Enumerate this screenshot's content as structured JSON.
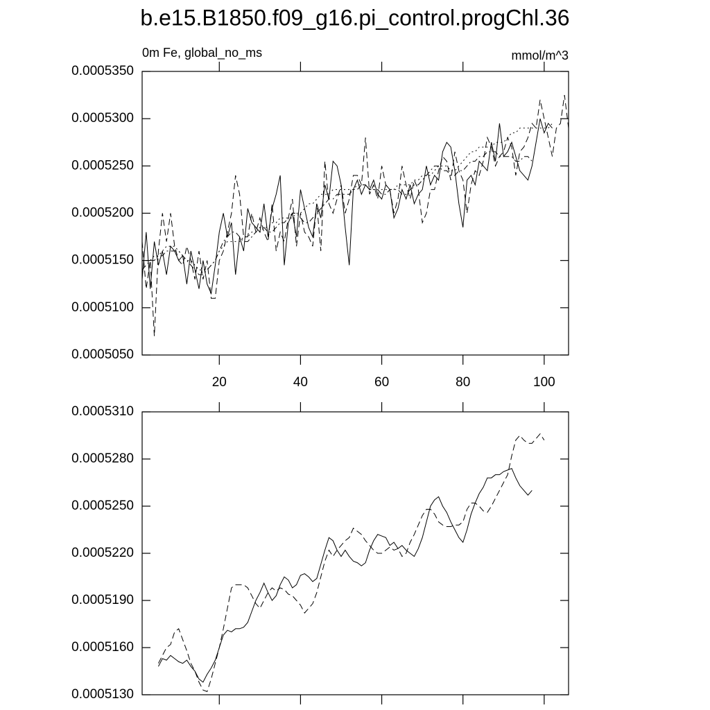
{
  "chart_data": [
    {
      "type": "line",
      "title": "b.e15.B1850.f09_g16.pi_control.progChl.36",
      "subtitle": "0m Fe, global_no_ms",
      "units": "mmol/m^3",
      "x": [
        1,
        2,
        3,
        4,
        5,
        6,
        7,
        8,
        9,
        10,
        11,
        12,
        13,
        14,
        15,
        16,
        17,
        18,
        19,
        20,
        21,
        22,
        23,
        24,
        25,
        26,
        27,
        28,
        29,
        30,
        31,
        32,
        33,
        34,
        35,
        36,
        37,
        38,
        39,
        40,
        41,
        42,
        43,
        44,
        45,
        46,
        47,
        48,
        49,
        50,
        51,
        52,
        53,
        54,
        55,
        56,
        57,
        58,
        59,
        60,
        61,
        62,
        63,
        64,
        65,
        66,
        67,
        68,
        69,
        70,
        71,
        72,
        73,
        74,
        75,
        76,
        77,
        78,
        79,
        80,
        81,
        82,
        83,
        84,
        85,
        86,
        87,
        88,
        89,
        90,
        91,
        92,
        93,
        94,
        95,
        96,
        97,
        98,
        99,
        100,
        101,
        102,
        103,
        104,
        105,
        106
      ],
      "xlim": [
        1,
        106
      ],
      "xticks": [
        20,
        40,
        60,
        80,
        100
      ],
      "ylim": [
        0.000505,
        0.000535
      ],
      "yticks": [
        {
          "value": 0.000505,
          "label": "0.0005050"
        },
        {
          "value": 0.00051,
          "label": "0.0005100"
        },
        {
          "value": 0.000515,
          "label": "0.0005150"
        },
        {
          "value": 0.00052,
          "label": "0.0005200"
        },
        {
          "value": 0.000525,
          "label": "0.0005250"
        },
        {
          "value": 0.00053,
          "label": "0.0005300"
        },
        {
          "value": 0.000535,
          "label": "0.0005350"
        }
      ],
      "series": [
        {
          "color": "#000000",
          "dash": "solid",
          "values": [
            0.000513,
            0.000518,
            0.000512,
            0.000517,
            0.0005145,
            0.000516,
            0.0005135,
            0.0005165,
            0.000516,
            0.000515,
            0.0005155,
            0.0005125,
            0.000516,
            0.000514,
            0.000512,
            0.000515,
            0.0005125,
            0.0005115,
            0.0005145,
            0.000518,
            0.00052,
            0.0005175,
            0.000519,
            0.0005135,
            0.0005175,
            0.000516,
            0.0005205,
            0.000519,
            0.0005185,
            0.000518,
            0.000521,
            0.0005175,
            0.0005205,
            0.000522,
            0.000524,
            0.0005145,
            0.000519,
            0.00052,
            0.0005175,
            0.0005225,
            0.0005205,
            0.0005185,
            0.0005175,
            0.000521,
            0.0005195,
            0.000523,
            0.0005215,
            0.0005255,
            0.000525,
            0.000523,
            0.0005185,
            0.0005145,
            0.0005225,
            0.0005235,
            0.000522,
            0.000523,
            0.0005225,
            0.0005235,
            0.000522,
            0.0005215,
            0.000523,
            0.0005225,
            0.0005195,
            0.0005205,
            0.0005225,
            0.0005215,
            0.000523,
            0.000521,
            0.000522,
            0.0005225,
            0.000525,
            0.000523,
            0.000524,
            0.0005235,
            0.0005265,
            0.0005275,
            0.000527,
            0.0005245,
            0.000521,
            0.0005185,
            0.0005235,
            0.000524,
            0.000523,
            0.0005255,
            0.000525,
            0.0005245,
            0.0005275,
            0.0005255,
            0.0005295,
            0.000526,
            0.0005265,
            0.0005275,
            0.000526,
            0.0005245,
            0.000524,
            0.0005235,
            0.000525,
            0.0005275,
            0.00053,
            0.0005285,
            0.0005295,
            0.000529,
            null,
            null,
            null,
            null
          ]
        },
        {
          "color": "#000000",
          "dash": "dashed",
          "values": [
            0.000517,
            0.000512,
            0.000515,
            0.000507,
            0.000516,
            0.00052,
            0.000517,
            0.00052,
            0.0005165,
            0.000515,
            0.0005145,
            0.0005165,
            0.000515,
            0.000513,
            0.000516,
            0.000513,
            0.000515,
            0.000511,
            0.000511,
            0.000515,
            0.000516,
            0.000518,
            0.00052,
            0.000524,
            0.000522,
            0.0005175,
            0.0005175,
            0.00052,
            0.000518,
            0.0005195,
            0.000518,
            0.000517,
            0.000521,
            0.000516,
            0.000518,
            0.000517,
            0.0005195,
            0.0005215,
            0.0005165,
            0.00052,
            0.000518,
            0.0005175,
            0.0005165,
            0.000521,
            0.000516,
            0.0005255,
            0.000521,
            0.00052,
            0.0005215,
            0.000523,
            0.00052,
            0.0005215,
            0.000524,
            0.000524,
            0.000523,
            0.000528,
            0.000522,
            0.000523,
            0.0005215,
            0.000525,
            0.000523,
            0.0005225,
            0.00052,
            0.0005215,
            0.000525,
            0.000523,
            0.0005215,
            0.0005235,
            0.0005225,
            0.000519,
            0.00052,
            0.0005225,
            0.0005225,
            0.0005245,
            0.000526,
            0.0005255,
            0.0005235,
            0.0005265,
            0.0005245,
            0.0005235,
            0.00052,
            0.000523,
            0.0005245,
            0.000524,
            0.0005255,
            0.000528,
            0.000527,
            0.000525,
            0.000526,
            0.0005265,
            0.000528,
            0.000527,
            0.000524,
            0.0005265,
            0.000527,
            0.000528,
            0.0005295,
            0.000529,
            0.000532,
            0.00053,
            0.000528,
            0.000526,
            0.000529,
            0.0005295,
            0.0005325,
            0.000529
          ]
        },
        {
          "color": "#000000",
          "dash": "dashdot",
          "values": [
            0.000514,
            0.0005145,
            0.000515,
            0.000515,
            0.0005155,
            0.0005155,
            0.000516,
            0.000516,
            0.000516,
            0.000516,
            0.0005155,
            0.000515,
            0.0005145,
            0.000514,
            0.0005135,
            0.0005135,
            0.000514,
            0.0005145,
            0.000515,
            0.000516,
            0.000517,
            0.0005175,
            0.000518,
            0.000518,
            0.0005175,
            0.000517,
            0.000517,
            0.0005175,
            0.000518,
            0.0005185,
            0.0005185,
            0.000518,
            0.000518,
            0.0005185,
            0.000519,
            0.000519,
            0.0005195,
            0.00052,
            0.00052,
            0.0005195,
            0.000519,
            0.000519,
            0.0005195,
            0.00052,
            0.0005205,
            0.000521,
            0.0005215,
            0.0005215,
            0.000522,
            0.000522,
            0.000522,
            0.000522,
            0.0005225,
            0.0005225,
            0.000523,
            0.000523,
            0.0005225,
            0.0005225,
            0.0005225,
            0.000522,
            0.000522,
            0.0005225,
            0.0005225,
            0.0005225,
            0.000522,
            0.000522,
            0.0005225,
            0.000523,
            0.000523,
            0.0005235,
            0.000524,
            0.0005245,
            0.000525,
            0.000525,
            0.0005245,
            0.0005245,
            0.000524,
            0.000524,
            0.0005245,
            0.0005245,
            0.000525,
            0.0005255,
            0.0005255,
            0.000526,
            0.000526,
            0.0005265,
            0.0005265,
            0.0005265,
            0.000526,
            0.000526,
            0.000526,
            0.000526,
            0.0005255,
            0.0005255,
            0.000526,
            0.000526,
            0.0005255,
            null,
            null,
            null,
            null,
            null,
            null,
            null,
            null,
            null
          ]
        },
        {
          "color": "#000000",
          "dash": "dotted",
          "values": [
            0.000515,
            0.000515,
            0.000515,
            0.0005155,
            0.0005155,
            0.000516,
            0.0005165,
            0.0005165,
            0.0005165,
            0.000516,
            0.0005155,
            0.000515,
            0.000515,
            0.0005145,
            0.000514,
            0.000514,
            0.000514,
            0.0005145,
            0.000515,
            0.000516,
            0.0005165,
            0.000517,
            0.000517,
            0.000517,
            0.000517,
            0.0005175,
            0.0005175,
            0.000518,
            0.000518,
            0.000518,
            0.0005185,
            0.0005185,
            0.000519,
            0.000519,
            0.0005195,
            0.0005195,
            0.0005195,
            0.0005195,
            0.00052,
            0.00052,
            0.0005205,
            0.000521,
            0.000521,
            0.0005215,
            0.000522,
            0.000522,
            0.000522,
            0.0005225,
            0.0005225,
            0.0005225,
            0.0005225,
            0.0005225,
            0.0005225,
            0.000523,
            0.000523,
            0.000523,
            0.0005225,
            0.0005225,
            0.0005225,
            0.0005225,
            0.0005225,
            0.0005225,
            0.0005225,
            0.000523,
            0.000523,
            0.000523,
            0.000523,
            0.0005235,
            0.0005235,
            0.000524,
            0.000524,
            0.000524,
            0.0005245,
            0.000525,
            0.000525,
            0.000525,
            0.0005245,
            0.0005245,
            0.000525,
            0.0005255,
            0.000526,
            0.0005265,
            0.0005265,
            0.000527,
            0.000527,
            0.000527,
            0.000527,
            0.0005275,
            0.0005275,
            0.0005275,
            0.000528,
            0.0005285,
            0.0005285,
            0.000529,
            0.000529,
            0.000529,
            0.000529,
            0.000529,
            0.000529,
            0.000529,
            0.000529,
            0.0005295,
            null,
            null,
            null,
            null
          ]
        }
      ]
    },
    {
      "type": "line",
      "x": [
        1,
        2,
        3,
        4,
        5,
        6,
        7,
        8,
        9,
        10,
        11,
        12,
        13,
        14,
        15,
        16,
        17,
        18,
        19,
        20,
        21,
        22,
        23,
        24,
        25,
        26,
        27,
        28,
        29,
        30,
        31,
        32,
        33,
        34,
        35,
        36,
        37,
        38,
        39,
        40,
        41,
        42,
        43,
        44,
        45,
        46,
        47,
        48,
        49,
        50,
        51,
        52,
        53,
        54,
        55,
        56,
        57,
        58,
        59,
        60,
        61,
        62,
        63,
        64,
        65,
        66,
        67,
        68,
        69,
        70,
        71,
        72,
        73,
        74,
        75,
        76,
        77,
        78,
        79,
        80,
        81,
        82,
        83,
        84,
        85,
        86,
        87,
        88,
        89,
        90,
        91,
        92,
        93,
        94,
        95,
        96,
        97,
        98,
        99,
        100,
        101,
        102,
        103,
        104,
        105,
        106
      ],
      "xlim": [
        1,
        106
      ],
      "xticks": [
        20,
        40,
        60,
        80,
        100
      ],
      "ylim": [
        0.000513,
        0.000531
      ],
      "yticks": [
        {
          "value": 0.000513,
          "label": "0.0005130"
        },
        {
          "value": 0.000516,
          "label": "0.0005160"
        },
        {
          "value": 0.000519,
          "label": "0.0005190"
        },
        {
          "value": 0.000522,
          "label": "0.0005220"
        },
        {
          "value": 0.000525,
          "label": "0.0005250"
        },
        {
          "value": 0.000528,
          "label": "0.0005280"
        },
        {
          "value": 0.000531,
          "label": "0.0005310"
        }
      ],
      "series": [
        {
          "color": "#000000",
          "dash": "solid",
          "values": [
            null,
            null,
            null,
            null,
            0.0005148,
            0.0005153,
            0.0005152,
            0.0005155,
            0.0005153,
            0.0005151,
            0.000515,
            0.0005152,
            0.0005148,
            0.0005145,
            0.000514,
            0.0005138,
            0.0005143,
            0.0005147,
            0.0005152,
            0.000516,
            0.0005168,
            0.0005171,
            0.000517,
            0.0005172,
            0.0005172,
            0.0005173,
            0.0005176,
            0.0005183,
            0.000519,
            0.0005195,
            0.0005201,
            0.0005195,
            0.000519,
            0.0005193,
            0.00052,
            0.0005205,
            0.0005203,
            0.0005198,
            0.00052,
            0.0005206,
            0.0005207,
            0.0005205,
            0.0005202,
            0.0005204,
            0.0005213,
            0.0005222,
            0.000523,
            0.0005228,
            0.0005222,
            0.0005218,
            0.0005222,
            0.0005218,
            0.0005215,
            0.0005214,
            0.0005212,
            0.0005214,
            0.0005222,
            0.0005228,
            0.0005232,
            0.0005231,
            0.000523,
            0.0005225,
            0.0005227,
            0.0005223,
            0.0005225,
            0.0005222,
            0.000522,
            0.0005218,
            0.0005223,
            0.000523,
            0.000524,
            0.000525,
            0.0005254,
            0.0005256,
            0.000525,
            0.0005246,
            0.000524,
            0.0005235,
            0.000523,
            0.0005227,
            0.0005235,
            0.0005245,
            0.0005252,
            0.0005258,
            0.0005262,
            0.0005268,
            0.0005268,
            0.000527,
            0.000527,
            0.0005272,
            0.0005273,
            0.0005274,
            0.0005268,
            0.0005263,
            0.000526,
            0.0005257,
            0.000526,
            null,
            null,
            null,
            null,
            null,
            null,
            null,
            null,
            null
          ]
        },
        {
          "color": "#000000",
          "dash": "dashed",
          "values": [
            null,
            null,
            null,
            null,
            0.000515,
            0.0005155,
            0.000516,
            0.0005162,
            0.000517,
            0.0005172,
            0.0005165,
            0.0005158,
            0.000515,
            0.0005145,
            0.0005138,
            0.0005133,
            0.0005132,
            0.000514,
            0.000515,
            0.000516,
            0.0005172,
            0.0005185,
            0.0005198,
            0.00052,
            0.00052,
            0.00052,
            0.0005198,
            0.0005193,
            0.0005188,
            0.0005185,
            0.000519,
            0.0005195,
            0.0005198,
            0.0005196,
            0.0005198,
            0.0005197,
            0.0005194,
            0.0005193,
            0.000519,
            0.0005187,
            0.0005182,
            0.0005185,
            0.0005188,
            0.0005195,
            0.0005205,
            0.0005215,
            0.0005222,
            0.0005218,
            0.0005222,
            0.0005225,
            0.0005228,
            0.000523,
            0.0005236,
            0.0005234,
            0.0005232,
            0.0005228,
            0.0005225,
            0.0005222,
            0.000522,
            0.000522,
            0.0005222,
            0.0005224,
            0.0005222,
            0.0005223,
            0.0005218,
            0.000522,
            0.0005227,
            0.0005232,
            0.0005238,
            0.0005244,
            0.0005248,
            0.0005248,
            0.0005245,
            0.000524,
            0.0005238,
            0.0005237,
            0.0005237,
            0.0005238,
            0.0005238,
            0.000524,
            0.0005248,
            0.0005252,
            0.0005252,
            0.000525,
            0.0005247,
            0.0005246,
            0.000525,
            0.0005255,
            0.000526,
            0.0005265,
            0.000527,
            0.0005282,
            0.0005292,
            0.0005295,
            0.0005292,
            0.000529,
            0.000529,
            0.0005293,
            0.0005296,
            0.0005292,
            null,
            null,
            null,
            null,
            null,
            null
          ]
        }
      ]
    }
  ]
}
